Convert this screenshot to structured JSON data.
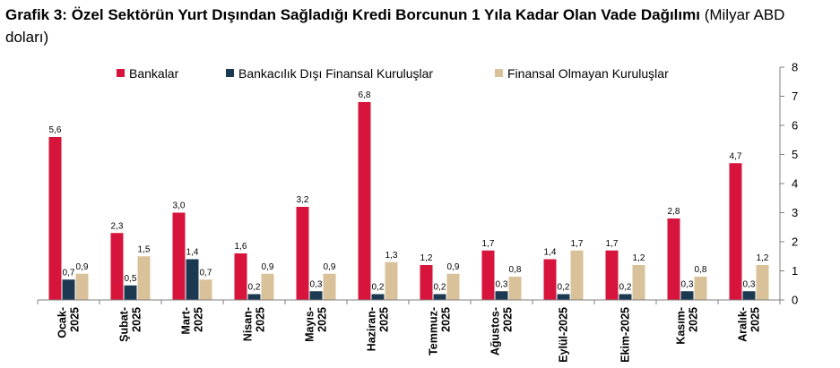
{
  "title": {
    "bold": "Grafik 3: Özel Sektörün Yurt Dışından Sağladığı Kredi Borcunun 1 Yıla Kadar Olan Vade Dağılımı",
    "unit": " (Milyar ABD doları)"
  },
  "chart_data": {
    "type": "bar",
    "title": "Grafik 3: Özel Sektörün Yurt Dışından Sağladığı Kredi Borcunun 1 Yıla Kadar Olan Vade Dağılımı",
    "unit": "(Milyar ABD doları)",
    "categories": [
      [
        "Ocak-",
        "2025"
      ],
      [
        "Şubat-",
        "2025"
      ],
      [
        "Mart-",
        "2025"
      ],
      [
        "Nisan-",
        "2025"
      ],
      [
        "Mayıs-",
        "2025"
      ],
      [
        "Haziran-",
        "2025"
      ],
      [
        "Temmuz-",
        "2025"
      ],
      [
        "Ağustos-",
        "2025"
      ],
      [
        "Eylül-2025"
      ],
      [
        "Ekim-2025"
      ],
      [
        "Kasım-",
        "2025"
      ],
      [
        "Aralık-",
        "2025"
      ]
    ],
    "series": [
      {
        "name": "Bankalar",
        "color": "#D7143C",
        "values": [
          5.6,
          2.3,
          3.0,
          1.6,
          3.2,
          6.8,
          1.2,
          1.7,
          1.4,
          1.7,
          2.8,
          4.7
        ],
        "labels": [
          "5,6",
          "2,3",
          "3,0",
          "1,6",
          "3,2",
          "6,8",
          "1,2",
          "1,7",
          "1,4",
          "1,7",
          "2,8",
          "4,7"
        ]
      },
      {
        "name": "Bankacılık Dışı Finansal Kuruluşlar",
        "color": "#1B3A52",
        "values": [
          0.7,
          0.5,
          1.4,
          0.2,
          0.3,
          0.2,
          0.2,
          0.3,
          0.2,
          0.2,
          0.3,
          0.3
        ],
        "labels": [
          "0,7",
          "0,5",
          "1,4",
          "0,2",
          "0,3",
          "0,2",
          "0,2",
          "0,3",
          "0,2",
          "0,2",
          "0,3",
          "0,3"
        ]
      },
      {
        "name": "Finansal Olmayan Kuruluşlar",
        "color": "#D9C29A",
        "values": [
          0.9,
          1.5,
          0.7,
          0.9,
          0.9,
          1.3,
          0.9,
          0.8,
          1.7,
          1.2,
          0.8,
          1.2
        ],
        "labels": [
          "0,9",
          "1,5",
          "0,7",
          "0,9",
          "0,9",
          "1,3",
          "0,9",
          "0,8",
          "1,7",
          "1,2",
          "0,8",
          "1,2"
        ]
      }
    ],
    "ylim": [
      0,
      8
    ],
    "yticks": [
      "0",
      "1",
      "2",
      "3",
      "4",
      "5",
      "6",
      "7",
      "8"
    ],
    "y_axis_side": "right",
    "grid": false,
    "legend_position": "top"
  }
}
